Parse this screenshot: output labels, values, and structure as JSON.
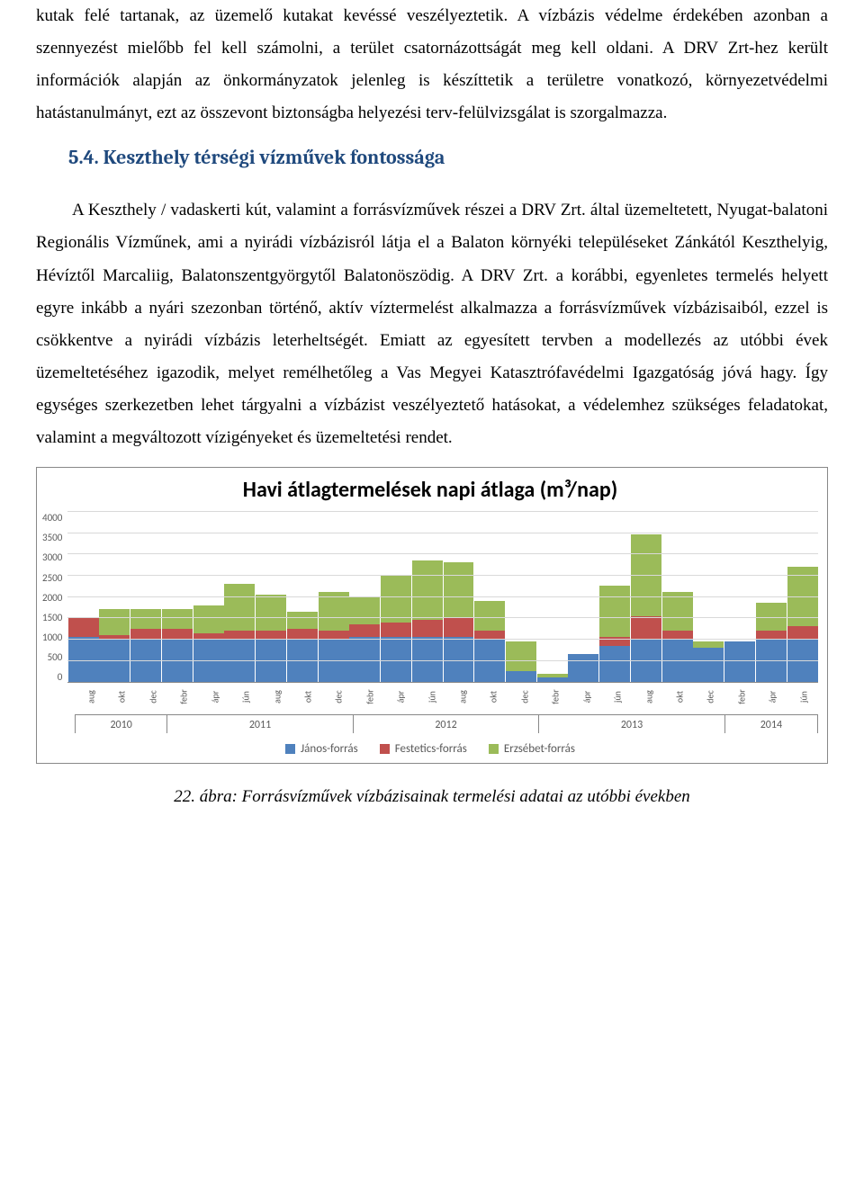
{
  "para1": "kutak felé tartanak, az üzemelő kutakat kevéssé veszélyeztetik. A vízbázis védelme érdekében azonban a szennyezést mielőbb fel kell számolni, a terület csatornázottságát meg kell oldani. A DRV Zrt-hez került információk alapján az önkormányzatok jelenleg is készíttetik a területre vonatkozó, környezetvédelmi hatástanulmányt, ezt az összevont biztonságba helyezési terv-felülvizsgálat is szorgalmazza.",
  "heading": "5.4. Keszthely térségi vízművek fontossága",
  "heading_color": "#1f497d",
  "para2": "A Keszthely / vadaskerti kút, valamint a forrásvízművek részei a DRV Zrt. által üzemeltetett, Nyugat-balatoni Regionális Vízműnek, ami a nyirádi vízbázisról látja el a Balaton környéki településeket Zánkától Keszthelyig, Hévíztől Marcaliig, Balatonszentgyörgytől Balatonöszödig. A DRV Zrt. a korábbi, egyenletes termelés helyett egyre inkább a nyári szezonban történő, aktív víztermelést alkalmazza a forrásvízművek vízbázisaiból, ezzel is csökkentve a nyirádi vízbázis leterheltségét. Emiatt az egyesített tervben a modellezés az utóbbi évek üzemeltetéséhez igazodik, melyet remélhetőleg a Vas Megyei Katasztrófavédelmi Igazgatóság jóvá hagy. Így egységes szerkezetben lehet tárgyalni a vízbázist veszélyeztető hatásokat, a védelemhez szükséges feladatokat, valamint a megváltozott vízigényeket és üzemeltetési rendet.",
  "chart": {
    "title": "Havi átlagtermelések napi átlaga (m³/nap)",
    "title_fontsize": 24,
    "title_color": "#000000",
    "ylim": [
      0,
      4000
    ],
    "ytick_step": 500,
    "yticks": [
      "4000",
      "3500",
      "3000",
      "2500",
      "2000",
      "1500",
      "1000",
      "500",
      "0"
    ],
    "grid_color": "#d9d9d9",
    "axis_color": "#888888",
    "label_color": "#595959",
    "series_colors": {
      "janos": "#4f81bd",
      "festetics": "#c0504d",
      "erzsebet": "#9bbb59"
    },
    "legend": [
      {
        "label": "János-forrás",
        "color_key": "janos"
      },
      {
        "label": "Festetics-forrás",
        "color_key": "festetics"
      },
      {
        "label": "Erzsébet-forrás",
        "color_key": "erzsebet"
      }
    ],
    "x_labels": [
      "aug",
      "okt",
      "dec",
      "febr",
      "ápr",
      "jún",
      "aug",
      "okt",
      "dec",
      "febr",
      "ápr",
      "jún",
      "aug",
      "okt",
      "dec",
      "febr",
      "ápr",
      "jún",
      "aug",
      "okt",
      "dec",
      "febr",
      "ápr",
      "jún"
    ],
    "years": [
      {
        "label": "2010",
        "span": 3
      },
      {
        "label": "2011",
        "span": 6
      },
      {
        "label": "2012",
        "span": 6
      },
      {
        "label": "2013",
        "span": 6
      },
      {
        "label": "2014",
        "span": 3
      }
    ],
    "bars": [
      {
        "janos": 1050,
        "festetics": 450,
        "erzsebet": 0
      },
      {
        "janos": 1000,
        "festetics": 100,
        "erzsebet": 600
      },
      {
        "janos": 1000,
        "festetics": 250,
        "erzsebet": 450
      },
      {
        "janos": 1000,
        "festetics": 250,
        "erzsebet": 450
      },
      {
        "janos": 1000,
        "festetics": 150,
        "erzsebet": 650
      },
      {
        "janos": 1000,
        "festetics": 200,
        "erzsebet": 1100
      },
      {
        "janos": 1000,
        "festetics": 200,
        "erzsebet": 850
      },
      {
        "janos": 1000,
        "festetics": 250,
        "erzsebet": 400
      },
      {
        "janos": 1000,
        "festetics": 200,
        "erzsebet": 900
      },
      {
        "janos": 1050,
        "festetics": 300,
        "erzsebet": 650
      },
      {
        "janos": 1050,
        "festetics": 350,
        "erzsebet": 1100
      },
      {
        "janos": 1050,
        "festetics": 400,
        "erzsebet": 1400
      },
      {
        "janos": 1050,
        "festetics": 450,
        "erzsebet": 1300
      },
      {
        "janos": 1000,
        "festetics": 200,
        "erzsebet": 700
      },
      {
        "janos": 250,
        "festetics": 0,
        "erzsebet": 700
      },
      {
        "janos": 100,
        "festetics": 0,
        "erzsebet": 100
      },
      {
        "janos": 650,
        "festetics": 0,
        "erzsebet": 0
      },
      {
        "janos": 850,
        "festetics": 200,
        "erzsebet": 1200
      },
      {
        "janos": 1000,
        "festetics": 550,
        "erzsebet": 1900
      },
      {
        "janos": 1000,
        "festetics": 200,
        "erzsebet": 900
      },
      {
        "janos": 800,
        "festetics": 0,
        "erzsebet": 150
      },
      {
        "janos": 950,
        "festetics": 0,
        "erzsebet": 0
      },
      {
        "janos": 1000,
        "festetics": 200,
        "erzsebet": 650
      },
      {
        "janos": 1000,
        "festetics": 300,
        "erzsebet": 1400
      }
    ]
  },
  "caption": "22. ábra: Forrásvízművek vízbázisainak termelési adatai az utóbbi években"
}
